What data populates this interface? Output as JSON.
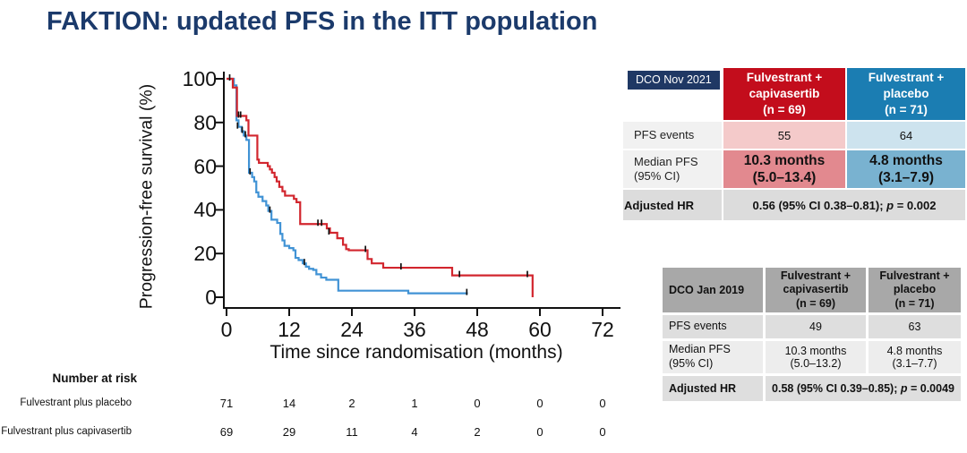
{
  "title": "FAKTION: updated PFS in the ITT population",
  "colors": {
    "title_navy": "#1b3a6b",
    "badge_navy": "#1f3864",
    "capivasertib_red_header": "#c30d1c",
    "placebo_blue_header": "#1b7db2",
    "curve_red": "#d2262e",
    "curve_blue": "#4193d5"
  },
  "chart_data": {
    "type": "line",
    "subtype": "kaplan-meier-step",
    "title": "",
    "xlabel": "Time since randomisation (months)",
    "ylabel": "Progression-free survival (%)",
    "xlim": [
      0,
      72
    ],
    "ylim": [
      0,
      100
    ],
    "x_ticks": [
      "0",
      "12",
      "24",
      "36",
      "48",
      "60",
      "72"
    ],
    "y_ticks": [
      "0",
      "20",
      "40",
      "60",
      "80",
      "100"
    ],
    "grid": false,
    "legend": "none",
    "series": [
      {
        "name": "Fulvestrant plus capivasertib",
        "color": "#d2262e",
        "steps": [
          [
            0,
            100
          ],
          [
            1.2,
            96
          ],
          [
            2,
            83
          ],
          [
            3.8,
            81
          ],
          [
            4.2,
            74
          ],
          [
            5.9,
            63
          ],
          [
            6.2,
            61.5
          ],
          [
            7.9,
            60
          ],
          [
            8.3,
            58.5
          ],
          [
            8.7,
            57
          ],
          [
            9.2,
            55
          ],
          [
            9.6,
            53
          ],
          [
            10.1,
            50.5
          ],
          [
            10.7,
            48.5
          ],
          [
            11.2,
            46.5
          ],
          [
            12.9,
            45
          ],
          [
            13.4,
            43.5
          ],
          [
            14.1,
            33.5
          ],
          [
            19.2,
            31.5
          ],
          [
            19.8,
            29.5
          ],
          [
            21.2,
            27
          ],
          [
            22.3,
            24
          ],
          [
            22.9,
            22
          ],
          [
            23.4,
            21.5
          ],
          [
            27,
            17.5
          ],
          [
            27.8,
            15.5
          ],
          [
            30,
            13.5
          ],
          [
            43.2,
            10
          ],
          [
            58.6,
            0
          ]
        ],
        "censors": [
          [
            0.6,
            100
          ],
          [
            2.3,
            83
          ],
          [
            2.7,
            83
          ],
          [
            17.5,
            33.5
          ],
          [
            18.2,
            33.5
          ],
          [
            19.6,
            29.5
          ],
          [
            26.6,
            21.5
          ],
          [
            33.4,
            13.5
          ],
          [
            44.6,
            10
          ],
          [
            57.6,
            10
          ]
        ]
      },
      {
        "name": "Fulvestrant plus placebo",
        "color": "#4193d5",
        "steps": [
          [
            0,
            100
          ],
          [
            1.4,
            97
          ],
          [
            1.9,
            81
          ],
          [
            2.3,
            78
          ],
          [
            2.9,
            76
          ],
          [
            3.3,
            74
          ],
          [
            3.8,
            72
          ],
          [
            4.3,
            57
          ],
          [
            4.9,
            55
          ],
          [
            5.3,
            53
          ],
          [
            5.7,
            48
          ],
          [
            6.1,
            46
          ],
          [
            6.9,
            44
          ],
          [
            7.6,
            42
          ],
          [
            8,
            39.5
          ],
          [
            8.6,
            35.5
          ],
          [
            9.7,
            34
          ],
          [
            10.3,
            29
          ],
          [
            10.7,
            26
          ],
          [
            11.1,
            23.5
          ],
          [
            12,
            22.5
          ],
          [
            12.8,
            21.5
          ],
          [
            13.2,
            18
          ],
          [
            13.8,
            17
          ],
          [
            14.6,
            15.5
          ],
          [
            15.2,
            14
          ],
          [
            15.8,
            13
          ],
          [
            16.6,
            12.5
          ],
          [
            17.2,
            10.5
          ],
          [
            18.1,
            9
          ],
          [
            19.1,
            8
          ],
          [
            21.4,
            3
          ],
          [
            34.8,
            1.8
          ],
          [
            46.2,
            1.8
          ]
        ],
        "censors": [
          [
            2.1,
            78
          ],
          [
            3,
            76
          ],
          [
            3.6,
            74
          ],
          [
            4.5,
            57
          ],
          [
            8.3,
            39.5
          ],
          [
            14.9,
            15.5
          ],
          [
            46,
            1.8
          ]
        ]
      }
    ]
  },
  "risk_table": {
    "heading": "Number at risk",
    "rows": [
      {
        "label": "Fulvestrant plus placebo",
        "values": [
          "71",
          "14",
          "2",
          "1",
          "0",
          "0",
          "0"
        ]
      },
      {
        "label": "Fulvestrant plus capivasertib",
        "values": [
          "69",
          "29",
          "11",
          "4",
          "2",
          "0",
          "0"
        ]
      }
    ]
  },
  "table_2021": {
    "dco": "DCO Nov 2021",
    "col_capivasertib": "Fulvestrant +\ncapivasertib\n(n = 69)",
    "col_placebo": "Fulvestrant +\nplacebo\n(n = 71)",
    "pfs_events": {
      "label": "PFS events",
      "capivasertib": "55",
      "placebo": "64"
    },
    "median": {
      "label": "Median PFS\n(95% CI)",
      "capivasertib": "10.3 months\n(5.0–13.4)",
      "placebo": "4.8 months\n(3.1–7.9)"
    },
    "hr": {
      "label": "Adjusted HR",
      "prefix": "0.56 (95% CI 0.38–0.81); ",
      "p": "p",
      "value": " = 0.002"
    }
  },
  "table_2019": {
    "dco": "DCO Jan 2019",
    "col_capivasertib": "Fulvestrant +\ncapivasertib\n(n = 69)",
    "col_placebo": "Fulvestrant +\nplacebo\n(n = 71)",
    "pfs_events": {
      "label": "PFS events",
      "capivasertib": "49",
      "placebo": "63"
    },
    "median": {
      "label": "Median PFS\n(95% CI)",
      "capivasertib": "10.3 months\n(5.0–13.2)",
      "placebo": "4.8 months\n(3.1–7.7)"
    },
    "hr": {
      "label": "Adjusted HR",
      "prefix": "0.58 (95% CI 0.39–0.85); ",
      "p": "p",
      "value": " = 0.0049"
    }
  }
}
